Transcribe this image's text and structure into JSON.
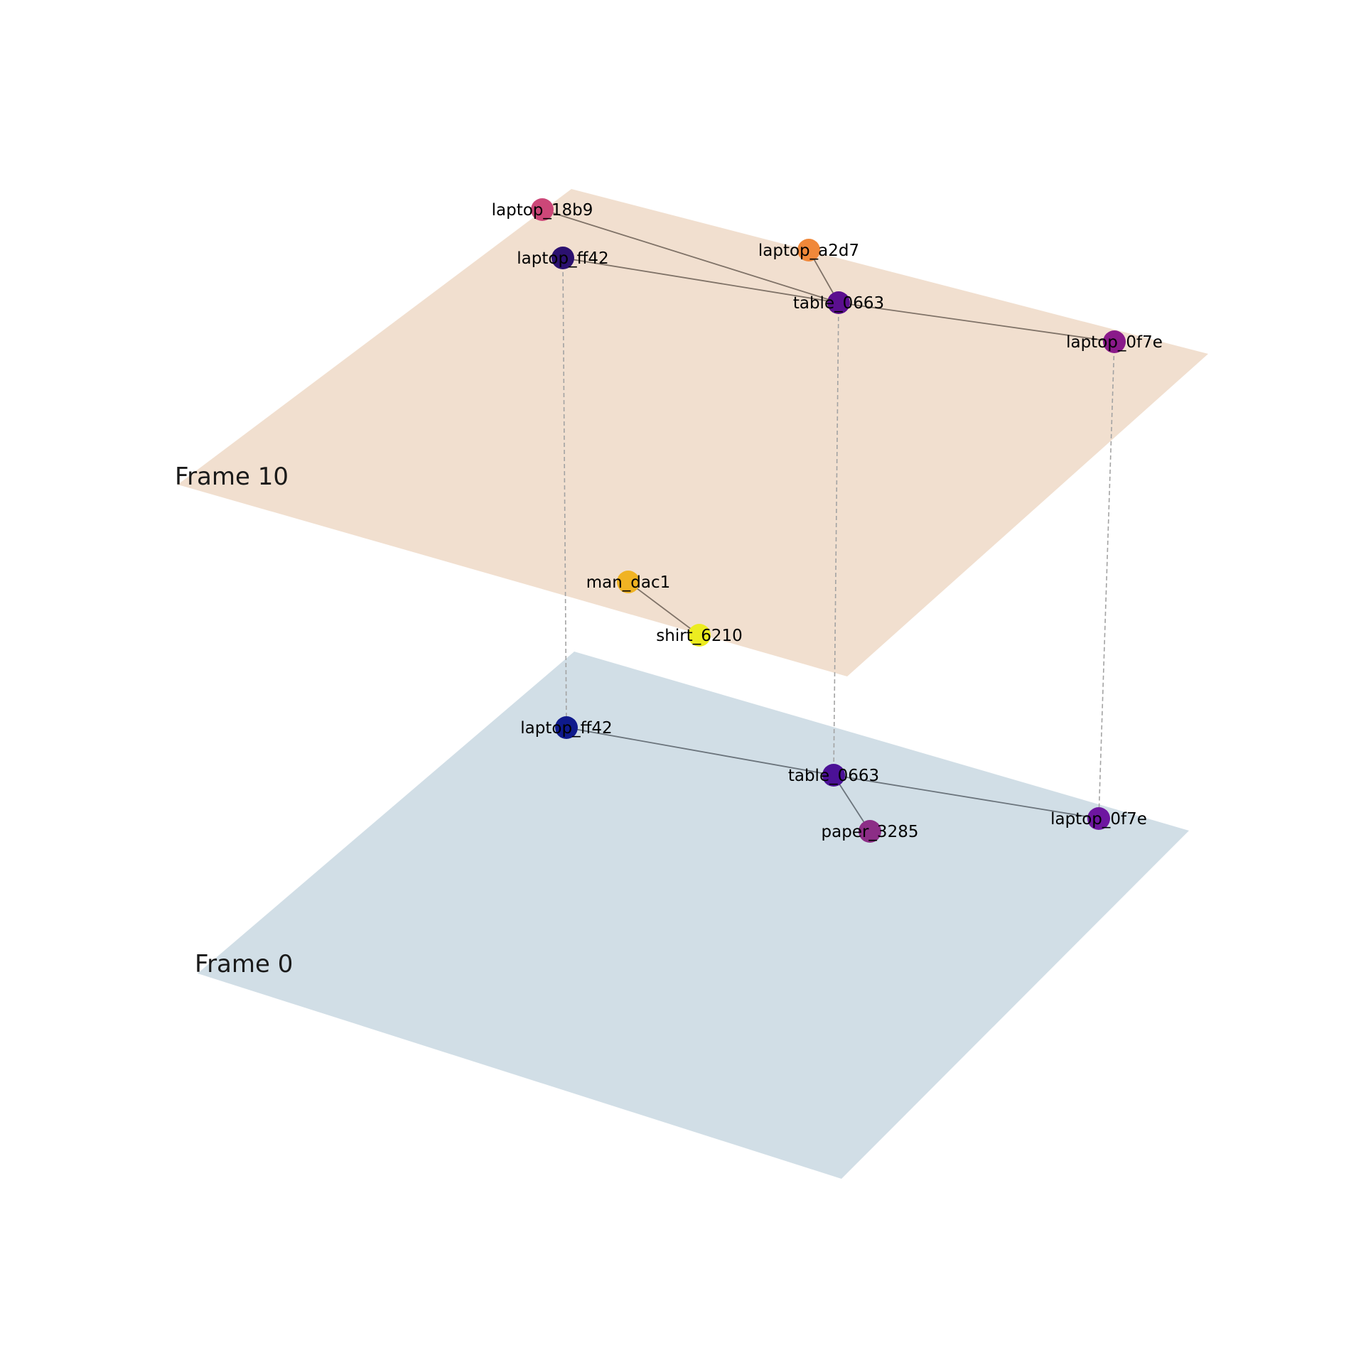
{
  "colors": {
    "frame_top_plane": "#f1dfcf",
    "frame_bottom_plane": "#d1dee6",
    "edge": "#7f7267",
    "edge_bottom": "#6b747c",
    "inter_frame_link": "#a3a3a3"
  },
  "frames": [
    {
      "id": "f10",
      "label": "Frame 10"
    },
    {
      "id": "f0",
      "label": "Frame 0"
    }
  ],
  "nodes": [
    {
      "id": "f10_laptop_18b9",
      "frame": "f10",
      "label": "laptop_18b9",
      "color": "#cc4778"
    },
    {
      "id": "f10_laptop_ff42",
      "frame": "f10",
      "label": "laptop_ff42",
      "color": "#2c1170"
    },
    {
      "id": "f10_laptop_a2d7",
      "frame": "f10",
      "label": "laptop_a2d7",
      "color": "#f0883a"
    },
    {
      "id": "f10_table_0663",
      "frame": "f10",
      "label": "table_0663",
      "color": "#5b0f8f"
    },
    {
      "id": "f10_laptop_0f7e",
      "frame": "f10",
      "label": "laptop_0f7e",
      "color": "#8a1a8a"
    },
    {
      "id": "f10_man_dac1",
      "frame": "f10",
      "label": "man_dac1",
      "color": "#f0b323"
    },
    {
      "id": "f10_shirt_6210",
      "frame": "f10",
      "label": "shirt_6210",
      "color": "#ecec20"
    },
    {
      "id": "f0_laptop_ff42",
      "frame": "f0",
      "label": "laptop_ff42",
      "color": "#0f1a8c"
    },
    {
      "id": "f0_table_0663",
      "frame": "f0",
      "label": "table_0663",
      "color": "#4b1196"
    },
    {
      "id": "f0_paper_3285",
      "frame": "f0",
      "label": "paper_3285",
      "color": "#8c2d86"
    },
    {
      "id": "f0_laptop_0f7e",
      "frame": "f0",
      "label": "laptop_0f7e",
      "color": "#6e16a0"
    }
  ],
  "edges": [
    {
      "from": "f10_laptop_18b9",
      "to": "f10_table_0663"
    },
    {
      "from": "f10_laptop_ff42",
      "to": "f10_table_0663"
    },
    {
      "from": "f10_laptop_a2d7",
      "to": "f10_table_0663"
    },
    {
      "from": "f10_table_0663",
      "to": "f10_laptop_0f7e"
    },
    {
      "from": "f10_man_dac1",
      "to": "f10_shirt_6210"
    },
    {
      "from": "f0_laptop_ff42",
      "to": "f0_table_0663"
    },
    {
      "from": "f0_table_0663",
      "to": "f0_laptop_0f7e"
    },
    {
      "from": "f0_table_0663",
      "to": "f0_paper_3285"
    }
  ],
  "links": [
    {
      "from": "f10_laptop_ff42",
      "to": "f0_laptop_ff42"
    },
    {
      "from": "f10_table_0663",
      "to": "f0_table_0663"
    },
    {
      "from": "f10_laptop_0f7e",
      "to": "f0_laptop_0f7e"
    }
  ]
}
